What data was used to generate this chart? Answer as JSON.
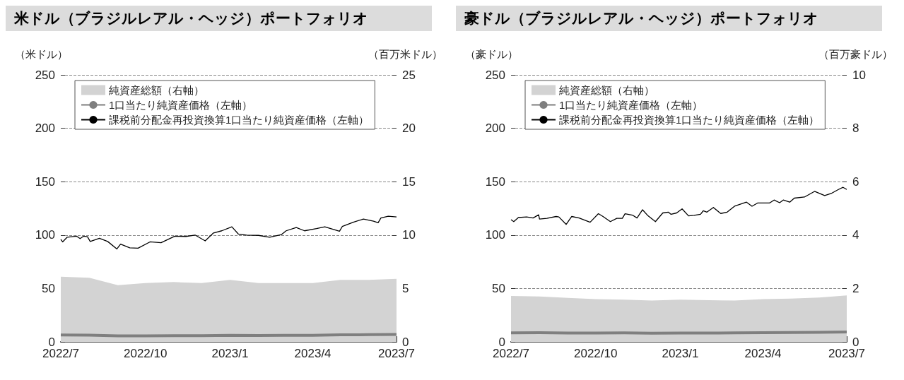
{
  "chart_data": [
    {
      "type": "line",
      "title": "米ドル（ブラジルレアル・ヘッジ）ポートフォリオ",
      "ylabel": "（米ドル）",
      "y2label": "（百万米ドル）",
      "xlim": [
        "2022-07",
        "2023-07"
      ],
      "xticks": [
        {
          "value": "2022-07",
          "label": "2022/7"
        },
        {
          "value": "2022-10",
          "label": "2022/10"
        },
        {
          "value": "2023-01",
          "label": "2023/1"
        },
        {
          "value": "2023-04",
          "label": "2023/4"
        },
        {
          "value": "2023-07",
          "label": "2023/7"
        }
      ],
      "ylim": [
        0,
        250
      ],
      "yticks": [
        0,
        50,
        100,
        150,
        200,
        250
      ],
      "y2lim": [
        0,
        25
      ],
      "y2ticks": [
        0,
        5,
        10,
        15,
        20,
        25
      ],
      "grid": "y",
      "legend": "top left",
      "marker": "none",
      "series": [
        {
          "name": "純資産総額（右軸）",
          "type": "area",
          "axis": "y2",
          "color": "#d3d3d3",
          "x": [
            "2022-07",
            "2022-08",
            "2022-09",
            "2022-10",
            "2022-11",
            "2022-12",
            "2023-01",
            "2023-02",
            "2023-03",
            "2023-04",
            "2023-05",
            "2023-06",
            "2023-07"
          ],
          "values": [
            6.1,
            6.0,
            5.3,
            5.5,
            5.6,
            5.5,
            5.8,
            5.5,
            5.5,
            5.5,
            5.8,
            5.8,
            5.9
          ]
        },
        {
          "name": "1口当たり純資産価格（左軸）",
          "color": "#7f7f7f",
          "x": [
            "2022-07",
            "2022-08",
            "2022-09",
            "2022-10",
            "2022-11",
            "2022-12",
            "2023-01",
            "2023-02",
            "2023-03",
            "2023-04",
            "2023-05",
            "2023-06",
            "2023-07"
          ],
          "values": [
            6.5,
            6.3,
            5.7,
            5.6,
            5.8,
            5.8,
            6.2,
            5.9,
            6.1,
            6.2,
            6.6,
            6.7,
            6.9
          ]
        },
        {
          "name": "課税前分配金再投資換算1口当たり純資産価格（左軸）",
          "color": "#000000",
          "x": [
            "2022-07-01",
            "2022-07-03",
            "2022-07-08",
            "2022-07-18",
            "2022-07-22",
            "2022-07-26",
            "2022-07-30",
            "2022-08-02",
            "2022-08-12",
            "2022-08-21",
            "2022-08-31",
            "2022-09-04",
            "2022-09-14",
            "2022-09-23",
            "2022-10-06",
            "2022-10-18",
            "2022-11-02",
            "2022-11-14",
            "2022-11-24",
            "2022-12-05",
            "2022-12-14",
            "2022-12-23",
            "2023-01-03",
            "2023-01-10",
            "2023-01-19",
            "2023-02-01",
            "2023-02-13",
            "2023-02-26",
            "2023-03-03",
            "2023-03-14",
            "2023-03-23",
            "2023-04-05",
            "2023-04-14",
            "2023-04-30",
            "2023-05-03",
            "2023-05-15",
            "2023-05-26",
            "2023-06-06",
            "2023-06-11",
            "2023-06-14",
            "2023-06-22",
            "2023-07-01"
          ],
          "values": [
            96,
            93.6,
            98,
            99,
            96.7,
            99,
            98.5,
            94,
            97,
            94,
            87,
            91.5,
            88,
            87.7,
            93.6,
            92.8,
            99,
            98.7,
            100,
            94.6,
            102,
            104,
            107.7,
            101,
            100,
            99.7,
            98,
            100.5,
            104,
            107,
            104,
            106,
            107.7,
            103.6,
            108,
            112,
            115,
            113,
            111.5,
            116,
            117.6,
            117
          ]
        }
      ]
    },
    {
      "type": "line",
      "title": "豪ドル（ブラジルレアル・ヘッジ）ポートフォリオ",
      "ylabel": "（豪ドル）",
      "y2label": "（百万豪ドル）",
      "xlim": [
        "2022-07",
        "2023-07"
      ],
      "xticks": [
        {
          "value": "2022-07",
          "label": "2022/7"
        },
        {
          "value": "2022-10",
          "label": "2022/10"
        },
        {
          "value": "2023-01",
          "label": "2023/1"
        },
        {
          "value": "2023-04",
          "label": "2023/4"
        },
        {
          "value": "2023-07",
          "label": "2023/7"
        }
      ],
      "ylim": [
        0,
        250
      ],
      "yticks": [
        0,
        50,
        100,
        150,
        200,
        250
      ],
      "y2lim": [
        0,
        10
      ],
      "y2ticks": [
        0,
        2,
        4,
        6,
        8,
        10
      ],
      "grid": "y",
      "legend": "top left",
      "marker": "none",
      "series": [
        {
          "name": "純資産総額（右軸）",
          "type": "area",
          "axis": "y2",
          "color": "#d3d3d3",
          "x": [
            "2022-07",
            "2022-08",
            "2022-09",
            "2022-10",
            "2022-11",
            "2022-12",
            "2023-01",
            "2023-02",
            "2023-03",
            "2023-04",
            "2023-05",
            "2023-06",
            "2023-07"
          ],
          "values": [
            1.72,
            1.7,
            1.65,
            1.6,
            1.58,
            1.55,
            1.58,
            1.56,
            1.55,
            1.6,
            1.62,
            1.66,
            1.74
          ]
        },
        {
          "name": "1口当たり純資産価格（左軸）",
          "color": "#7f7f7f",
          "x": [
            "2022-07",
            "2022-08",
            "2022-09",
            "2022-10",
            "2022-11",
            "2022-12",
            "2023-01",
            "2023-02",
            "2023-03",
            "2023-04",
            "2023-05",
            "2023-06",
            "2023-07"
          ],
          "values": [
            8.5,
            8.6,
            8.3,
            8.2,
            8.4,
            8.1,
            8.3,
            8.2,
            8.5,
            8.6,
            8.8,
            9.0,
            9.3
          ]
        },
        {
          "name": "課税前分配金再投資換算1口当たり純資産価格（左軸）",
          "color": "#000000",
          "x": [
            "2022-07-01",
            "2022-07-04",
            "2022-07-09",
            "2022-07-18",
            "2022-07-25",
            "2022-07-31",
            "2022-08-01",
            "2022-08-09",
            "2022-08-19",
            "2022-08-22",
            "2022-08-30",
            "2022-09-05",
            "2022-09-13",
            "2022-09-25",
            "2022-10-04",
            "2022-10-09",
            "2022-10-17",
            "2022-10-24",
            "2022-10-30",
            "2022-11-02",
            "2022-11-10",
            "2022-11-15",
            "2022-11-21",
            "2022-11-27",
            "2022-12-05",
            "2022-12-13",
            "2022-12-19",
            "2022-12-22",
            "2022-12-28",
            "2023-01-03",
            "2023-01-10",
            "2023-01-16",
            "2023-01-23",
            "2023-01-26",
            "2023-01-30",
            "2023-02-06",
            "2023-02-14",
            "2023-02-21",
            "2023-03-01",
            "2023-03-14",
            "2023-03-20",
            "2023-03-26",
            "2023-04-08",
            "2023-04-13",
            "2023-04-19",
            "2023-04-23",
            "2023-04-30",
            "2023-05-05",
            "2023-05-16",
            "2023-05-27",
            "2023-06-07",
            "2023-06-14",
            "2023-06-22",
            "2023-06-27",
            "2023-07-01"
          ],
          "values": [
            114.4,
            112.6,
            116.4,
            117,
            116,
            119,
            115,
            115.7,
            117.4,
            117,
            110,
            117.4,
            116,
            112,
            120,
            117.4,
            112.6,
            115.7,
            115.7,
            120,
            118.7,
            116,
            123.7,
            118,
            112.6,
            120.7,
            121.5,
            119.4,
            120.7,
            124.5,
            118,
            118.5,
            119.4,
            122.7,
            121.5,
            125.8,
            120.2,
            121.5,
            127,
            130.8,
            127,
            130,
            130,
            132.8,
            130.3,
            132.8,
            130.8,
            134.6,
            135.6,
            140.9,
            137,
            138.9,
            142.7,
            144.7,
            142.7
          ]
        }
      ]
    }
  ]
}
